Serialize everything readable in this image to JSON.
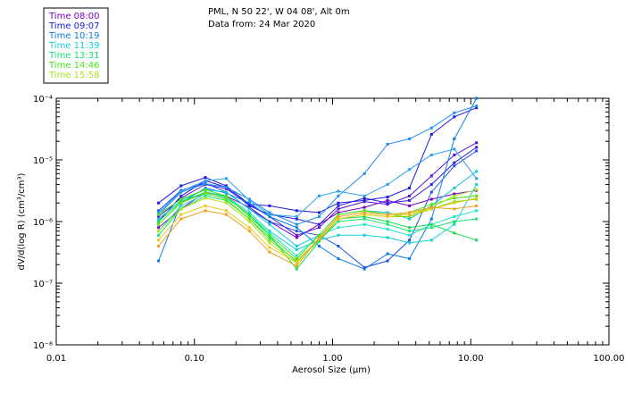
{
  "header": {
    "location": "PML, N 50 22', W 04 08', Alt 0m",
    "date_line": "Data from: 24 Mar 2020"
  },
  "legend": [
    {
      "label": "Time 08:00",
      "color": "#7a00c8"
    },
    {
      "label": "Time 09:07",
      "color": "#1a1ae6"
    },
    {
      "label": "Time 10:19",
      "color": "#0a7dea"
    },
    {
      "label": "Time 11:39",
      "color": "#14d2d2"
    },
    {
      "label": "Time 13:31",
      "color": "#14e66e"
    },
    {
      "label": "Time 14:46",
      "color": "#46e614"
    },
    {
      "label": "Time 15:58",
      "color": "#aae61e"
    }
  ],
  "chart_data": {
    "type": "line",
    "title": "",
    "xlabel": "Aerosol Size (μm)",
    "ylabel": "dV/d(log R) (cm³/cm³)",
    "xscale": "log",
    "yscale": "log",
    "xlim": [
      0.01,
      100
    ],
    "ylim": [
      1e-08,
      0.0001
    ],
    "x_ticks": [
      "0.01",
      "0.10",
      "1.00",
      "10.00",
      "100.00"
    ],
    "y_ticks": [
      "10⁻⁸",
      "10⁻⁷",
      "10⁻⁶",
      "10⁻⁵",
      "10⁻⁴"
    ],
    "x": [
      0.055,
      0.08,
      0.12,
      0.17,
      0.25,
      0.35,
      0.55,
      0.8,
      1.1,
      1.7,
      2.5,
      3.6,
      5.2,
      7.6,
      11.0
    ],
    "series": [
      {
        "name": "Time 08:00",
        "color": "#7a00c8",
        "values": [
          8e-07,
          1.6e-06,
          3e-06,
          2.6e-06,
          1.7e-06,
          1e-06,
          5.5e-07,
          9e-07,
          1.4e-06,
          1.7e-06,
          2.2e-06,
          1.8e-06,
          2.3e-06,
          2.8e-06,
          3.2e-06
        ]
      },
      {
        "name": "Time 08:00",
        "color": "#5a14dc",
        "values": [
          1.2e-06,
          2.4e-06,
          4e-06,
          3.4e-06,
          1.9e-06,
          1.2e-06,
          6e-07,
          8e-07,
          1.6e-06,
          2.1e-06,
          1.9e-06,
          2.6e-06,
          5.5e-06,
          1.2e-05,
          1.9e-05
        ]
      },
      {
        "name": "Time 09:07",
        "color": "#2d1ee6",
        "values": [
          1e-06,
          2.6e-06,
          4.6e-06,
          3.6e-06,
          1.8e-06,
          1.3e-06,
          1.1e-06,
          9e-07,
          1.8e-06,
          2.4e-06,
          2e-06,
          2.2e-06,
          4e-06,
          9e-06,
          1.6e-05
        ]
      },
      {
        "name": "Time 09:07",
        "color": "#1a1ae6",
        "values": [
          2e-06,
          3.8e-06,
          5.2e-06,
          3.8e-06,
          1.9e-06,
          1.8e-06,
          1.5e-06,
          1.4e-06,
          2e-06,
          2.2e-06,
          2.5e-06,
          3.5e-06,
          2.6e-05,
          5e-05,
          7e-05
        ]
      },
      {
        "name": "Time 09:07",
        "color": "#1e50f0",
        "values": [
          1.5e-06,
          3.2e-06,
          4.2e-06,
          3e-06,
          1.6e-06,
          1e-06,
          7e-07,
          6e-07,
          4e-07,
          1.8e-07,
          2.3e-07,
          5e-07,
          3e-06,
          8e-06,
          1.4e-05
        ]
      },
      {
        "name": "Time 10:19",
        "color": "#0a7dea",
        "values": [
          2.3e-07,
          2e-06,
          3.5e-06,
          2.9e-06,
          2e-06,
          1.2e-06,
          8e-07,
          4e-07,
          2.5e-07,
          1.7e-07,
          3e-07,
          2.5e-07,
          1.1e-06,
          2.2e-05,
          0.0001
        ]
      },
      {
        "name": "Time 10:19",
        "color": "#1e8cf0",
        "values": [
          1.3e-06,
          3e-06,
          4.1e-06,
          3.6e-06,
          2.3e-06,
          1.4e-06,
          9e-07,
          1.2e-06,
          2.6e-06,
          6e-06,
          1.8e-05,
          2.2e-05,
          3.3e-05,
          5.8e-05,
          7.5e-05
        ]
      },
      {
        "name": "Time 10:19",
        "color": "#28a0f0",
        "values": [
          1.4e-06,
          3.1e-06,
          4.6e-06,
          5e-06,
          2.2e-06,
          1.3e-06,
          1.2e-06,
          2.6e-06,
          3.1e-06,
          2.6e-06,
          4e-06,
          7e-06,
          1.2e-05,
          1.5e-05,
          5e-06
        ]
      },
      {
        "name": "Time 11:39",
        "color": "#14c8dc",
        "values": [
          1.1e-06,
          2.2e-06,
          3.3e-06,
          3e-06,
          1.6e-06,
          9e-07,
          4e-07,
          6e-07,
          1.3e-06,
          1.5e-06,
          1.4e-06,
          1.1e-06,
          1.8e-06,
          3.5e-06,
          6.5e-06
        ]
      },
      {
        "name": "Time 11:39",
        "color": "#14d2d2",
        "values": [
          9e-07,
          2e-06,
          3e-06,
          2.6e-06,
          1.4e-06,
          7e-07,
          3.5e-07,
          5e-07,
          6e-07,
          6e-07,
          5.5e-07,
          4.5e-07,
          5e-07,
          9e-07,
          4e-06
        ]
      },
      {
        "name": "Time 11:39",
        "color": "#1ee6c8",
        "values": [
          7e-07,
          1.8e-06,
          2.8e-06,
          2.4e-06,
          1.3e-06,
          6.5e-07,
          2.8e-07,
          6e-07,
          8e-07,
          9e-07,
          7.5e-07,
          6e-07,
          9e-07,
          1.2e-06,
          1.5e-06
        ]
      },
      {
        "name": "Time 13:31",
        "color": "#14e66e",
        "values": [
          6e-07,
          1.6e-06,
          2.6e-06,
          2.2e-06,
          1.1e-06,
          5.5e-07,
          2.2e-07,
          5e-07,
          1e-06,
          1.1e-06,
          9e-07,
          7e-07,
          8e-07,
          1e-06,
          1.1e-06
        ]
      },
      {
        "name": "Time 13:31",
        "color": "#1edc50",
        "values": [
          1e-06,
          2.1e-06,
          3e-06,
          2.5e-06,
          1.3e-06,
          6e-07,
          1.7e-07,
          4.8e-07,
          1.1e-06,
          1.2e-06,
          1e-06,
          8e-07,
          9e-07,
          6.5e-07,
          5e-07
        ]
      },
      {
        "name": "Time 14:46",
        "color": "#46e614",
        "values": [
          1.3e-06,
          2.3e-06,
          3.3e-06,
          2.6e-06,
          1.2e-06,
          6e-07,
          2.5e-07,
          6e-07,
          1.3e-06,
          1.5e-06,
          1.3e-06,
          1.4e-06,
          1.9e-06,
          2.4e-06,
          2.6e-06
        ]
      },
      {
        "name": "Time 14:46",
        "color": "#78dc14",
        "values": [
          9e-07,
          2e-06,
          2.9e-06,
          2.3e-06,
          1.1e-06,
          5e-07,
          2.3e-07,
          5.2e-07,
          1.1e-06,
          1.3e-06,
          1.2e-06,
          1.2e-06,
          1.6e-06,
          2.1e-06,
          2.3e-06
        ]
      },
      {
        "name": "Time 15:58",
        "color": "#aae61e",
        "values": [
          7e-07,
          1.6e-06,
          2.4e-06,
          2e-06,
          1e-06,
          4.5e-07,
          2.1e-07,
          5.5e-07,
          1.2e-06,
          1.4e-06,
          1.3e-06,
          1.3e-06,
          1.7e-06,
          2.6e-06,
          3.3e-06
        ]
      },
      {
        "name": "Time 15:58",
        "color": "#f0c814",
        "values": [
          5e-07,
          1.3e-06,
          1.8e-06,
          1.5e-06,
          8e-07,
          3.8e-07,
          2.2e-07,
          5.2e-07,
          1.1e-06,
          1.3e-06,
          1.2e-06,
          1.3e-06,
          1.6e-06,
          2e-06,
          2.4e-06
        ]
      },
      {
        "name": "Time 15:58",
        "color": "#f0a01e",
        "values": [
          4e-07,
          1.1e-06,
          1.5e-06,
          1.3e-06,
          7e-07,
          3.2e-07,
          1.9e-07,
          5.5e-07,
          1.2e-06,
          1.4e-06,
          1.3e-06,
          1.4e-06,
          1.7e-06,
          1.6e-06,
          1.8e-06
        ]
      }
    ]
  }
}
